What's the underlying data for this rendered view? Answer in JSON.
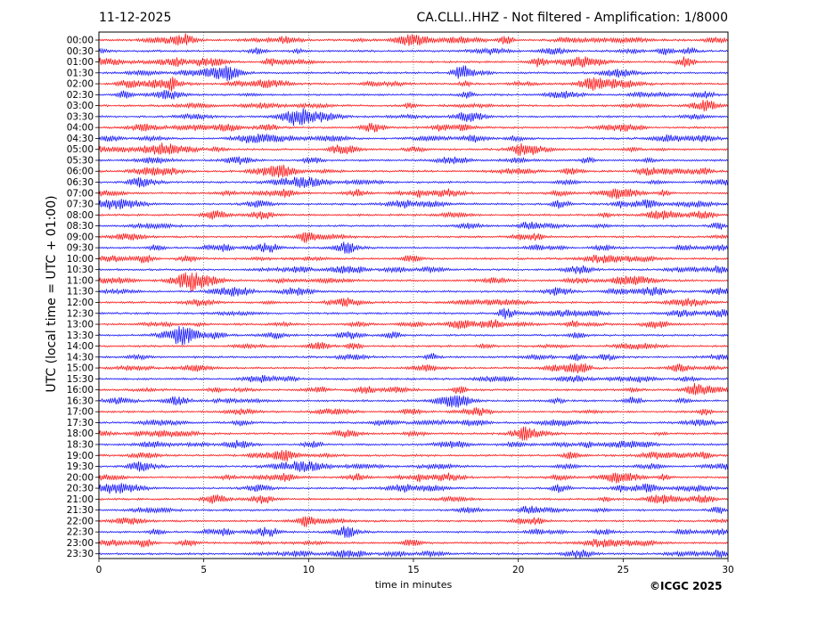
{
  "header": {
    "date": "11-12-2025",
    "station": "CA.CLLI..HHZ - Not filtered - Amplification: 1/8000"
  },
  "footer": {
    "copyright": "©ICGC 2025"
  },
  "chart_data": {
    "type": "line",
    "title": "CA.CLLI..HHZ - Not filtered - Amplification: 1/8000",
    "xlabel": "time in minutes",
    "ylabel": "UTC (local time = UTC + 01:00)",
    "xlim": [
      0,
      30
    ],
    "x_ticks": [
      0,
      5,
      10,
      15,
      20,
      25,
      30
    ],
    "grid": "vertical dotted",
    "row_labels": [
      "00:00",
      "00:30",
      "01:00",
      "01:30",
      "02:00",
      "02:30",
      "03:00",
      "03:30",
      "04:00",
      "04:30",
      "05:00",
      "05:30",
      "06:00",
      "06:30",
      "07:00",
      "07:30",
      "08:00",
      "08:30",
      "09:00",
      "09:30",
      "10:00",
      "10:30",
      "11:00",
      "11:30",
      "12:00",
      "12:30",
      "13:00",
      "13:30",
      "14:00",
      "14:30",
      "15:00",
      "15:30",
      "16:00",
      "16:30",
      "17:00",
      "17:30",
      "18:00",
      "18:30",
      "19:00",
      "19:30",
      "20:00",
      "20:30",
      "21:00",
      "21:30",
      "22:00",
      "22:30",
      "23:00",
      "23:30"
    ],
    "trace_colors": [
      "#ff0000",
      "#0000ff"
    ]
  }
}
